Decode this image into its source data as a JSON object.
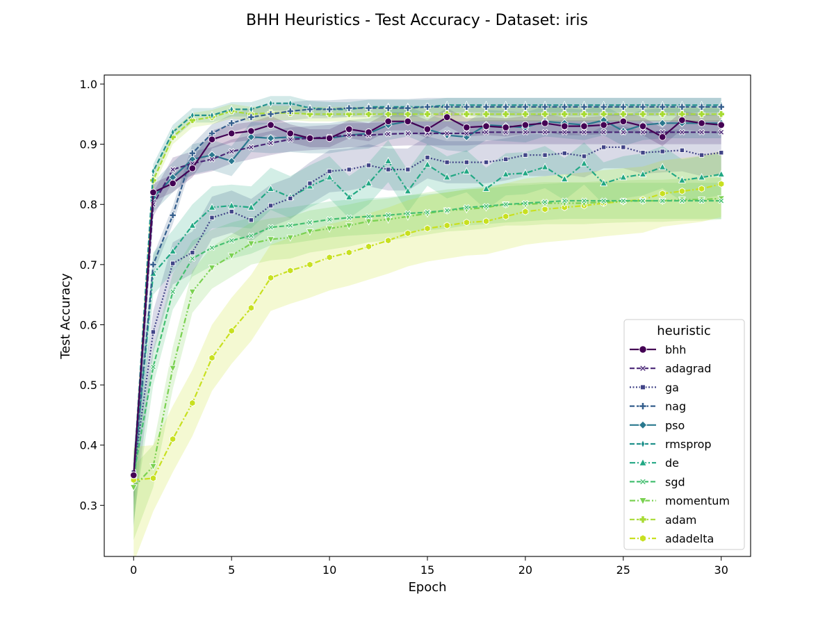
{
  "chart_data": {
    "type": "line",
    "title": "BHH Heuristics - Test Accuracy - Dataset: iris",
    "xlabel": "Epoch",
    "ylabel": "Test Accuracy",
    "xlim": [
      -1.5,
      31.5
    ],
    "ylim": [
      0.215,
      1.015
    ],
    "xticks": [
      0,
      5,
      10,
      15,
      20,
      25,
      30
    ],
    "yticks": [
      0.3,
      0.4,
      0.5,
      0.6,
      0.7,
      0.8,
      0.9,
      1.0
    ],
    "grid": false,
    "legend": {
      "title": "heuristic",
      "placement": "lower-right"
    },
    "x": [
      0,
      1,
      2,
      3,
      4,
      5,
      6,
      7,
      8,
      9,
      10,
      11,
      12,
      13,
      14,
      15,
      16,
      17,
      18,
      19,
      20,
      21,
      22,
      23,
      24,
      25,
      26,
      27,
      28,
      29,
      30
    ],
    "series": [
      {
        "name": "bhh",
        "color": "#440154",
        "marker": "circle",
        "dash": "solid",
        "band": 0.015,
        "values": [
          0.35,
          0.82,
          0.835,
          0.86,
          0.908,
          0.918,
          0.922,
          0.932,
          0.918,
          0.91,
          0.91,
          0.925,
          0.92,
          0.938,
          0.938,
          0.925,
          0.945,
          0.928,
          0.93,
          0.928,
          0.932,
          0.935,
          0.93,
          0.93,
          0.932,
          0.938,
          0.93,
          0.912,
          0.94,
          0.935,
          0.932
        ]
      },
      {
        "name": "adagrad",
        "color": "#482475",
        "marker": "x",
        "dash": "dashed",
        "band": 0.02,
        "values": [
          0.35,
          0.8,
          0.858,
          0.868,
          0.875,
          0.888,
          0.895,
          0.902,
          0.908,
          0.91,
          0.912,
          0.915,
          0.915,
          0.917,
          0.918,
          0.918,
          0.918,
          0.918,
          0.92,
          0.92,
          0.92,
          0.92,
          0.92,
          0.92,
          0.92,
          0.92,
          0.92,
          0.92,
          0.92,
          0.92,
          0.92
        ]
      },
      {
        "name": "ga",
        "color": "#414487",
        "marker": "square",
        "dash": "dotted",
        "band": 0.035,
        "values": [
          0.355,
          0.588,
          0.702,
          0.72,
          0.778,
          0.788,
          0.774,
          0.798,
          0.81,
          0.835,
          0.855,
          0.858,
          0.865,
          0.858,
          0.858,
          0.878,
          0.87,
          0.87,
          0.87,
          0.875,
          0.882,
          0.882,
          0.885,
          0.88,
          0.895,
          0.895,
          0.886,
          0.888,
          0.89,
          0.882,
          0.886
        ]
      },
      {
        "name": "nag",
        "color": "#355f8d",
        "marker": "plus",
        "dash": "dashed",
        "band": 0.015,
        "values": [
          0.35,
          0.7,
          0.782,
          0.885,
          0.918,
          0.935,
          0.945,
          0.95,
          0.955,
          0.958,
          0.958,
          0.96,
          0.96,
          0.96,
          0.96,
          0.962,
          0.962,
          0.962,
          0.962,
          0.962,
          0.962,
          0.962,
          0.962,
          0.962,
          0.962,
          0.962,
          0.962,
          0.962,
          0.962,
          0.962,
          0.962
        ]
      },
      {
        "name": "pso",
        "color": "#2a788e",
        "marker": "diamond",
        "dash": "solid",
        "band": 0.025,
        "values": [
          0.35,
          0.812,
          0.845,
          0.875,
          0.882,
          0.872,
          0.912,
          0.91,
          0.912,
          0.91,
          0.91,
          0.915,
          0.918,
          0.932,
          0.938,
          0.925,
          0.915,
          0.912,
          0.932,
          0.93,
          0.928,
          0.938,
          0.935,
          0.932,
          0.94,
          0.922,
          0.932,
          0.935,
          0.935,
          0.935,
          0.935
        ]
      },
      {
        "name": "rmsprop",
        "color": "#21918c",
        "marker": "thin-diamond",
        "dash": "dashed",
        "band": 0.012,
        "values": [
          0.352,
          0.855,
          0.92,
          0.948,
          0.948,
          0.958,
          0.958,
          0.968,
          0.968,
          0.96,
          0.958,
          0.958,
          0.962,
          0.962,
          0.962,
          0.962,
          0.965,
          0.965,
          0.965,
          0.965,
          0.965,
          0.965,
          0.965,
          0.965,
          0.965,
          0.965,
          0.965,
          0.965,
          0.965,
          0.965,
          0.965
        ]
      },
      {
        "name": "de",
        "color": "#22a884",
        "marker": "triangle-up",
        "dash": "dashdot",
        "band": 0.035,
        "values": [
          0.35,
          0.685,
          0.722,
          0.765,
          0.795,
          0.798,
          0.795,
          0.826,
          0.812,
          0.83,
          0.845,
          0.812,
          0.835,
          0.872,
          0.822,
          0.866,
          0.845,
          0.855,
          0.826,
          0.85,
          0.852,
          0.862,
          0.842,
          0.868,
          0.835,
          0.845,
          0.85,
          0.862,
          0.84,
          0.845,
          0.85
        ]
      },
      {
        "name": "sgd",
        "color": "#44bf70",
        "marker": "x",
        "dash": "dashed",
        "band": 0.03,
        "values": [
          0.35,
          0.53,
          0.655,
          0.71,
          0.728,
          0.74,
          0.748,
          0.762,
          0.765,
          0.77,
          0.775,
          0.778,
          0.78,
          0.782,
          0.785,
          0.787,
          0.79,
          0.795,
          0.797,
          0.8,
          0.802,
          0.804,
          0.806,
          0.806,
          0.806,
          0.806,
          0.806,
          0.806,
          0.806,
          0.806,
          0.806
        ]
      },
      {
        "name": "momentum",
        "color": "#7ad151",
        "marker": "triangle-down",
        "dash": "dashdotdot",
        "band": 0.035,
        "values": [
          0.33,
          0.365,
          0.528,
          0.655,
          0.695,
          0.715,
          0.735,
          0.742,
          0.745,
          0.755,
          0.76,
          0.765,
          0.772,
          0.775,
          0.78,
          0.785,
          0.79,
          0.792,
          0.795,
          0.8,
          0.8,
          0.802,
          0.802,
          0.802,
          0.804,
          0.805,
          0.806,
          0.806,
          0.808,
          0.808,
          0.81
        ]
      },
      {
        "name": "adam",
        "color": "#a8db34",
        "marker": "plus-bold",
        "dash": "dashed",
        "band": 0.012,
        "values": [
          0.35,
          0.84,
          0.912,
          0.94,
          0.945,
          0.955,
          0.95,
          0.952,
          0.952,
          0.95,
          0.95,
          0.95,
          0.95,
          0.95,
          0.95,
          0.95,
          0.95,
          0.95,
          0.95,
          0.95,
          0.95,
          0.95,
          0.95,
          0.95,
          0.95,
          0.95,
          0.95,
          0.95,
          0.95,
          0.95,
          0.95
        ]
      },
      {
        "name": "adadelta",
        "color": "#c8e020",
        "marker": "hexagon",
        "dash": "dashdot",
        "band": 0.055,
        "values": [
          0.342,
          0.345,
          0.41,
          0.47,
          0.545,
          0.59,
          0.628,
          0.678,
          0.69,
          0.7,
          0.712,
          0.72,
          0.73,
          0.74,
          0.752,
          0.76,
          0.765,
          0.77,
          0.772,
          0.78,
          0.788,
          0.792,
          0.795,
          0.798,
          0.802,
          0.805,
          0.808,
          0.818,
          0.822,
          0.826,
          0.834
        ]
      }
    ]
  }
}
